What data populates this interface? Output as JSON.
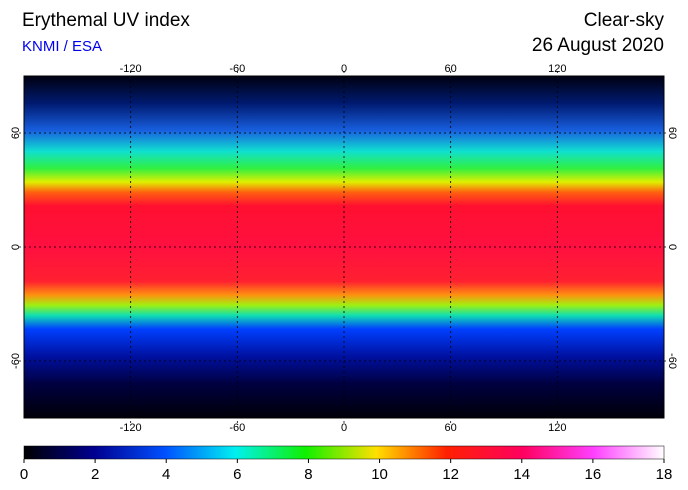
{
  "header": {
    "title": "Erythemal UV index",
    "source": "KNMI / ESA",
    "mode": "Clear-sky",
    "date": "26 August 2020"
  },
  "map": {
    "lonlim": [
      -180,
      180
    ],
    "latlim": [
      -90,
      90
    ],
    "lon_ticks": [
      -120,
      -60,
      0,
      60,
      120
    ],
    "lat_ticks": [
      60,
      0,
      -60
    ]
  },
  "colorbar": {
    "lim": [
      0,
      18
    ],
    "ticks": [
      0,
      2,
      4,
      6,
      8,
      10,
      12,
      14,
      16,
      18
    ]
  }
}
